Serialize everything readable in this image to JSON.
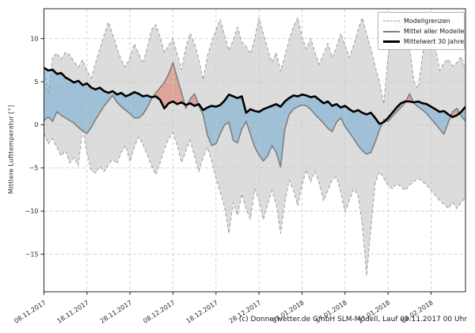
{
  "axes": {
    "y_label": "Mittlere Lufttemperatur [°]",
    "y_ticks": [
      10,
      5,
      0,
      -5,
      -10,
      -15
    ],
    "x_tick_days": [
      0,
      10,
      20,
      30,
      40,
      50,
      60,
      70,
      80,
      90
    ],
    "x_tick_labels": [
      "08.11.2017",
      "18.11.2017",
      "28.11.2017",
      "08.12.2017",
      "18.12.2017",
      "28.12.2017",
      "07.01.2018",
      "17.01.2018",
      "27.01.2018",
      "06.02.2018"
    ]
  },
  "legend": {
    "items": [
      {
        "label": "Modellgrenzen",
        "style": "dashed-gray"
      },
      {
        "label": "Mittel aller Modelle",
        "style": "solid-gray"
      },
      {
        "label": "Mittelwert 30 Jahre",
        "style": "thick-black"
      }
    ]
  },
  "footer": "(c) Donnerwetter.de GmbH SLM-Modell, Lauf 09.11.2017 00 Uhr",
  "colors": {
    "band_fill": "#dcdcdc",
    "band_edge": "#9a9a9a",
    "model_mean_line": "#7f7f7f",
    "climate_mean_line": "#000000",
    "cold_fill": "rgba(110,170,210,0.55)",
    "warm_fill": "rgba(225,110,90,0.5)",
    "grid": "#c9c9c9",
    "spine": "#262626"
  },
  "chart_data": {
    "type": "line",
    "x_unit": "days since 08.11.2017 (daily steps)",
    "x_range_days": [
      0,
      98
    ],
    "ylim": [
      -19.3,
      13.5
    ],
    "grid": true,
    "legend_position": "upper right",
    "title": "",
    "xlabel": "",
    "ylabel": "Mittlere Lufttemperatur [°]",
    "series": [
      {
        "name": "Modellgrenzen oben",
        "values": [
          6.8,
          3.6,
          7.8,
          8.3,
          7.6,
          8.4,
          8.1,
          7.3,
          6.7,
          7.5,
          6.3,
          5.4,
          7.2,
          8.8,
          10.4,
          11.9,
          10.5,
          8.9,
          7.5,
          6.7,
          7.8,
          9.4,
          8.3,
          7.1,
          8.9,
          11.0,
          11.6,
          10.2,
          8.4,
          9.2,
          10.0,
          8.2,
          6.4,
          9.0,
          10.6,
          9.4,
          7.6,
          5.2,
          8.0,
          9.6,
          11.0,
          12.2,
          10.4,
          8.6,
          9.8,
          11.3,
          9.6,
          9.1,
          8.2,
          10.0,
          12.4,
          10.6,
          8.8,
          7.2,
          8.4,
          6.2,
          8.0,
          9.8,
          11.4,
          12.4,
          10.2,
          8.8,
          10.0,
          8.4,
          7.0,
          8.2,
          9.4,
          7.8,
          9.0,
          10.6,
          9.2,
          7.8,
          9.2,
          11.0,
          12.4,
          10.6,
          8.8,
          6.8,
          5.0,
          2.4,
          7.9,
          10.5,
          11.8,
          12.6,
          12.8,
          9.0,
          5.0,
          4.2,
          8.0,
          11.5,
          12.4,
          9.0,
          6.3,
          7.2,
          7.6,
          6.8,
          7.2,
          7.9,
          6.4
        ]
      },
      {
        "name": "Modellgrenzen unten",
        "values": [
          -1.0,
          -2.2,
          -1.6,
          -2.6,
          -3.6,
          -3.0,
          -4.4,
          -3.8,
          -4.7,
          -0.4,
          -3.2,
          -5.3,
          -5.6,
          -4.8,
          -5.4,
          -4.6,
          -4.0,
          -4.5,
          -3.2,
          -2.4,
          -4.3,
          -2.6,
          -1.4,
          -2.3,
          -3.4,
          -4.7,
          -5.8,
          -4.4,
          -2.8,
          -1.6,
          -0.9,
          -2.4,
          -4.4,
          -3.0,
          -1.8,
          -3.6,
          -5.4,
          -3.8,
          -2.6,
          -4.2,
          -6.2,
          -7.8,
          -9.5,
          -12.6,
          -9.0,
          -10.5,
          -8.0,
          -9.8,
          -10.9,
          -7.4,
          -8.8,
          -11.0,
          -9.2,
          -7.6,
          -9.2,
          -12.6,
          -9.0,
          -6.4,
          -7.6,
          -9.4,
          -7.0,
          -5.2,
          -6.6,
          -5.4,
          -6.8,
          -8.8,
          -7.6,
          -6.4,
          -6.0,
          -7.8,
          -10.1,
          -8.8,
          -7.4,
          -8.2,
          -11.5,
          -17.5,
          -12.0,
          -6.8,
          -5.4,
          -6.2,
          -7.0,
          -7.4,
          -6.8,
          -7.2,
          -7.6,
          -7.0,
          -6.6,
          -6.2,
          -6.6,
          -7.0,
          -7.6,
          -8.2,
          -8.8,
          -9.2,
          -9.7,
          -9.0,
          -9.7,
          -9.0,
          -8.4
        ]
      },
      {
        "name": "Mittel aller Modelle",
        "values": [
          0.5,
          0.9,
          0.4,
          1.5,
          1.1,
          0.8,
          0.5,
          0.2,
          -0.3,
          -0.7,
          -1.0,
          -0.3,
          0.6,
          1.4,
          2.2,
          2.8,
          3.4,
          2.6,
          2.1,
          1.7,
          1.3,
          0.8,
          0.8,
          1.2,
          2.0,
          3.0,
          3.7,
          4.3,
          4.9,
          5.9,
          7.2,
          5.4,
          3.7,
          1.9,
          3.0,
          3.6,
          2.2,
          1.2,
          -1.2,
          -2.4,
          -2.2,
          -1.0,
          0.0,
          0.3,
          -1.8,
          -2.1,
          -0.5,
          0.4,
          -1.1,
          -2.6,
          -3.5,
          -4.2,
          -3.6,
          -2.4,
          -3.2,
          -4.9,
          -0.5,
          1.2,
          1.8,
          2.1,
          2.3,
          2.2,
          1.8,
          1.2,
          0.7,
          0.2,
          -0.4,
          -0.8,
          0.3,
          0.8,
          -0.2,
          -0.9,
          -1.6,
          -2.4,
          -3.0,
          -3.4,
          -3.2,
          -2.0,
          -0.6,
          0.6,
          0.4,
          1.0,
          1.5,
          2.0,
          2.6,
          3.6,
          2.5,
          2.1,
          1.7,
          1.3,
          0.7,
          0.1,
          -0.5,
          -1.1,
          0.3,
          1.5,
          1.9,
          1.0,
          0.4
        ]
      },
      {
        "name": "Mittelwert 30 Jahre",
        "values": [
          6.6,
          6.3,
          6.4,
          5.9,
          6.0,
          5.5,
          5.2,
          4.9,
          5.1,
          4.6,
          4.8,
          4.3,
          4.1,
          4.3,
          3.9,
          3.7,
          3.9,
          3.5,
          3.7,
          3.3,
          3.5,
          3.8,
          3.6,
          3.3,
          3.4,
          3.2,
          3.3,
          2.9,
          1.9,
          2.5,
          2.7,
          2.4,
          2.6,
          2.3,
          2.5,
          2.2,
          2.4,
          1.7,
          2.0,
          2.2,
          2.1,
          2.3,
          2.8,
          3.5,
          3.3,
          3.1,
          3.3,
          1.4,
          1.8,
          1.6,
          1.5,
          1.8,
          2.0,
          2.2,
          2.4,
          2.1,
          2.7,
          3.1,
          3.4,
          3.3,
          3.5,
          3.4,
          3.2,
          3.3,
          2.9,
          2.5,
          2.7,
          2.2,
          2.4,
          2.0,
          2.2,
          1.8,
          1.5,
          1.7,
          1.4,
          1.2,
          1.4,
          0.8,
          0.1,
          0.3,
          0.8,
          1.4,
          2.0,
          2.5,
          2.7,
          2.7,
          2.6,
          2.7,
          2.5,
          2.4,
          2.1,
          1.8,
          1.5,
          1.6,
          1.2,
          0.9,
          1.1,
          1.5,
          2.1
        ]
      }
    ],
    "fills": [
      {
        "name": "Modellgrenzen-Band",
        "between": [
          "Modellgrenzen oben",
          "Modellgrenzen unten"
        ],
        "color": "#dcdcdc"
      },
      {
        "name": "kälter als Mittel",
        "condition": "Mittel aller Modelle < Mittelwert 30 Jahre",
        "color": "blue"
      },
      {
        "name": "wärmer als Mittel",
        "condition": "Mittel aller Modelle > Mittelwert 30 Jahre",
        "color": "red"
      }
    ]
  }
}
